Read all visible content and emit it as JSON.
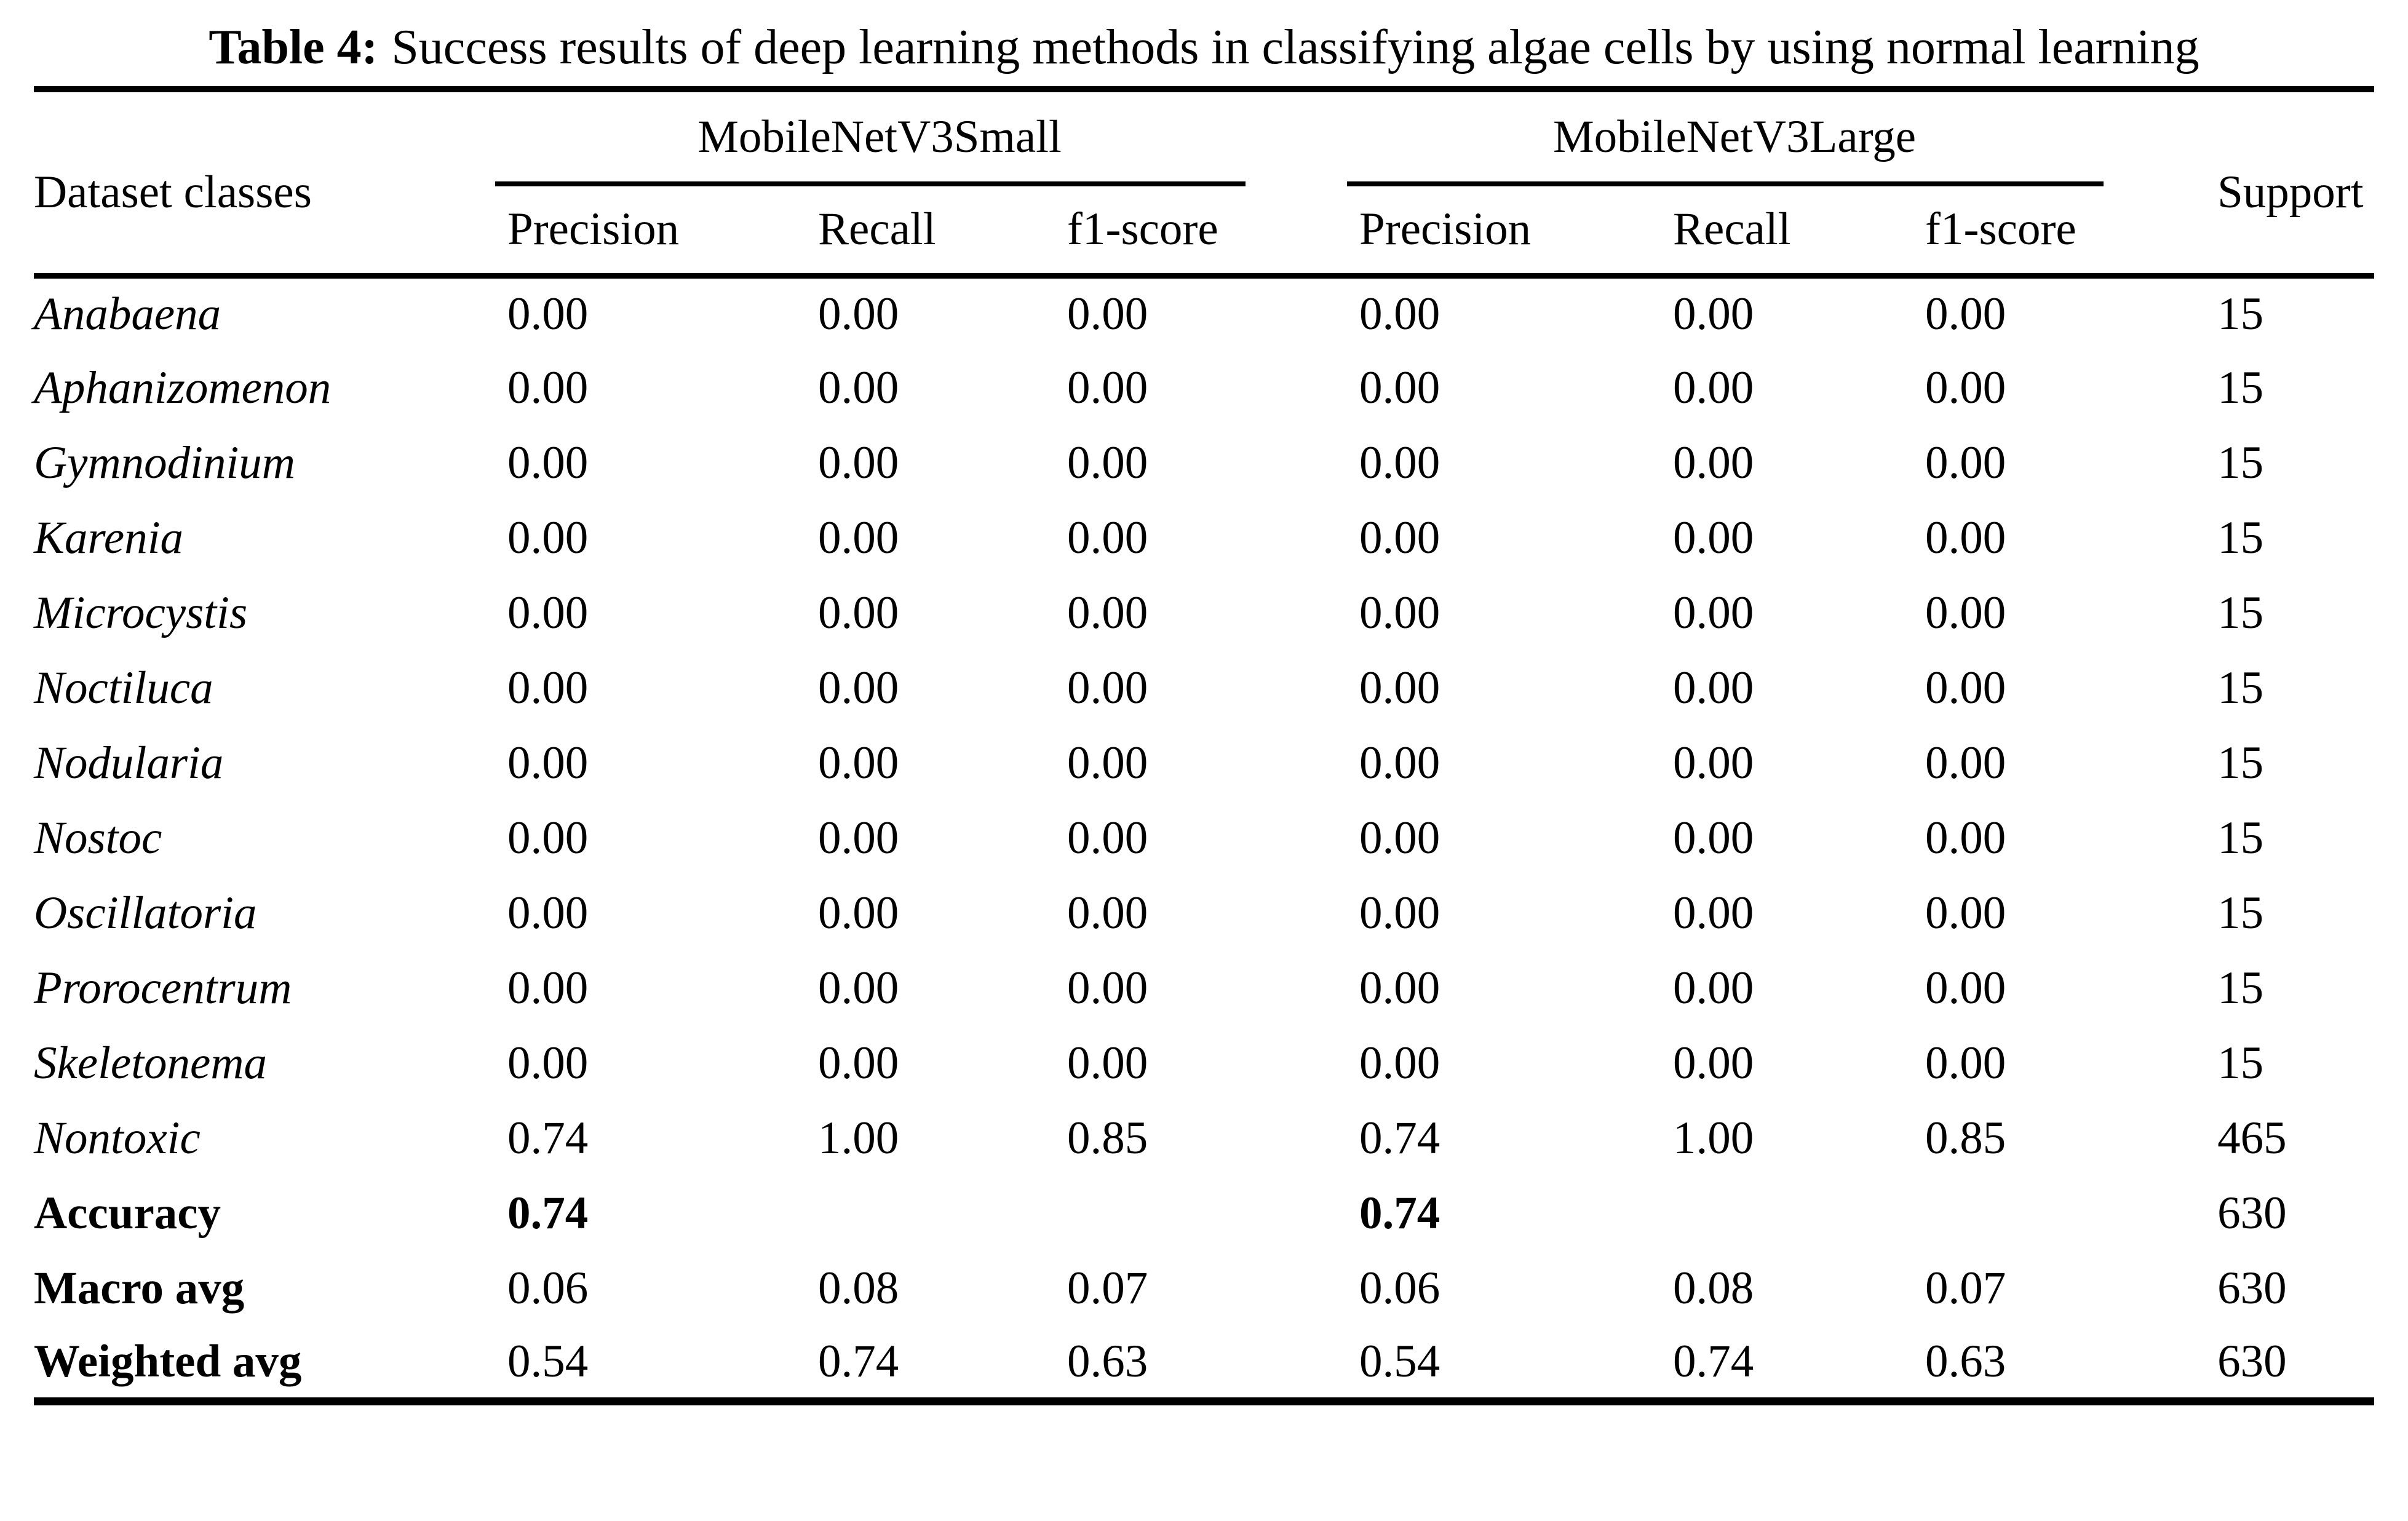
{
  "title": {
    "label": "Table 4:",
    "text": "Success results of deep learning methods in classifying algae cells by using normal learning"
  },
  "table": {
    "col1_header": "Dataset classes",
    "support_header": "Support",
    "groups": [
      {
        "label": "MobileNetV3Small",
        "subheaders": [
          "Precision",
          "Recall",
          "f1-score"
        ]
      },
      {
        "label": "MobileNetV3Large",
        "subheaders": [
          "Precision",
          "Recall",
          "f1-score"
        ]
      }
    ],
    "rows": [
      {
        "label": "Anabaena",
        "label_style": "italic",
        "values_bold": false,
        "small": [
          "0.00",
          "0.00",
          "0.00"
        ],
        "large": [
          "0.00",
          "0.00",
          "0.00"
        ],
        "support": "15"
      },
      {
        "label": "Aphanizomenon",
        "label_style": "italic",
        "values_bold": false,
        "small": [
          "0.00",
          "0.00",
          "0.00"
        ],
        "large": [
          "0.00",
          "0.00",
          "0.00"
        ],
        "support": "15"
      },
      {
        "label": "Gymnodinium",
        "label_style": "italic",
        "values_bold": false,
        "small": [
          "0.00",
          "0.00",
          "0.00"
        ],
        "large": [
          "0.00",
          "0.00",
          "0.00"
        ],
        "support": "15"
      },
      {
        "label": "Karenia",
        "label_style": "italic",
        "values_bold": false,
        "small": [
          "0.00",
          "0.00",
          "0.00"
        ],
        "large": [
          "0.00",
          "0.00",
          "0.00"
        ],
        "support": "15"
      },
      {
        "label": "Microcystis",
        "label_style": "italic",
        "values_bold": false,
        "small": [
          "0.00",
          "0.00",
          "0.00"
        ],
        "large": [
          "0.00",
          "0.00",
          "0.00"
        ],
        "support": "15"
      },
      {
        "label": "Noctiluca",
        "label_style": "italic",
        "values_bold": false,
        "small": [
          "0.00",
          "0.00",
          "0.00"
        ],
        "large": [
          "0.00",
          "0.00",
          "0.00"
        ],
        "support": "15"
      },
      {
        "label": "Nodularia",
        "label_style": "italic",
        "values_bold": false,
        "small": [
          "0.00",
          "0.00",
          "0.00"
        ],
        "large": [
          "0.00",
          "0.00",
          "0.00"
        ],
        "support": "15"
      },
      {
        "label": "Nostoc",
        "label_style": "italic",
        "values_bold": false,
        "small": [
          "0.00",
          "0.00",
          "0.00"
        ],
        "large": [
          "0.00",
          "0.00",
          "0.00"
        ],
        "support": "15"
      },
      {
        "label": "Oscillatoria",
        "label_style": "italic",
        "values_bold": false,
        "small": [
          "0.00",
          "0.00",
          "0.00"
        ],
        "large": [
          "0.00",
          "0.00",
          "0.00"
        ],
        "support": "15"
      },
      {
        "label": "Prorocentrum",
        "label_style": "italic",
        "values_bold": false,
        "small": [
          "0.00",
          "0.00",
          "0.00"
        ],
        "large": [
          "0.00",
          "0.00",
          "0.00"
        ],
        "support": "15"
      },
      {
        "label": "Skeletonema",
        "label_style": "italic",
        "values_bold": false,
        "small": [
          "0.00",
          "0.00",
          "0.00"
        ],
        "large": [
          "0.00",
          "0.00",
          "0.00"
        ],
        "support": "15"
      },
      {
        "label": "Nontoxic",
        "label_style": "italic",
        "values_bold": false,
        "small": [
          "0.74",
          "1.00",
          "0.85"
        ],
        "large": [
          "0.74",
          "1.00",
          "0.85"
        ],
        "support": "465"
      },
      {
        "label": "Accuracy",
        "label_style": "bold",
        "values_bold": true,
        "small": [
          "0.74",
          "",
          ""
        ],
        "large": [
          "0.74",
          "",
          ""
        ],
        "support": "630"
      },
      {
        "label": "Macro avg",
        "label_style": "bold",
        "values_bold": false,
        "small": [
          "0.06",
          "0.08",
          "0.07"
        ],
        "large": [
          "0.06",
          "0.08",
          "0.07"
        ],
        "support": "630"
      },
      {
        "label": "Weighted avg",
        "label_style": "bold",
        "values_bold": false,
        "small": [
          "0.54",
          "0.74",
          "0.63"
        ],
        "large": [
          "0.54",
          "0.74",
          "0.63"
        ],
        "support": "630"
      }
    ]
  }
}
